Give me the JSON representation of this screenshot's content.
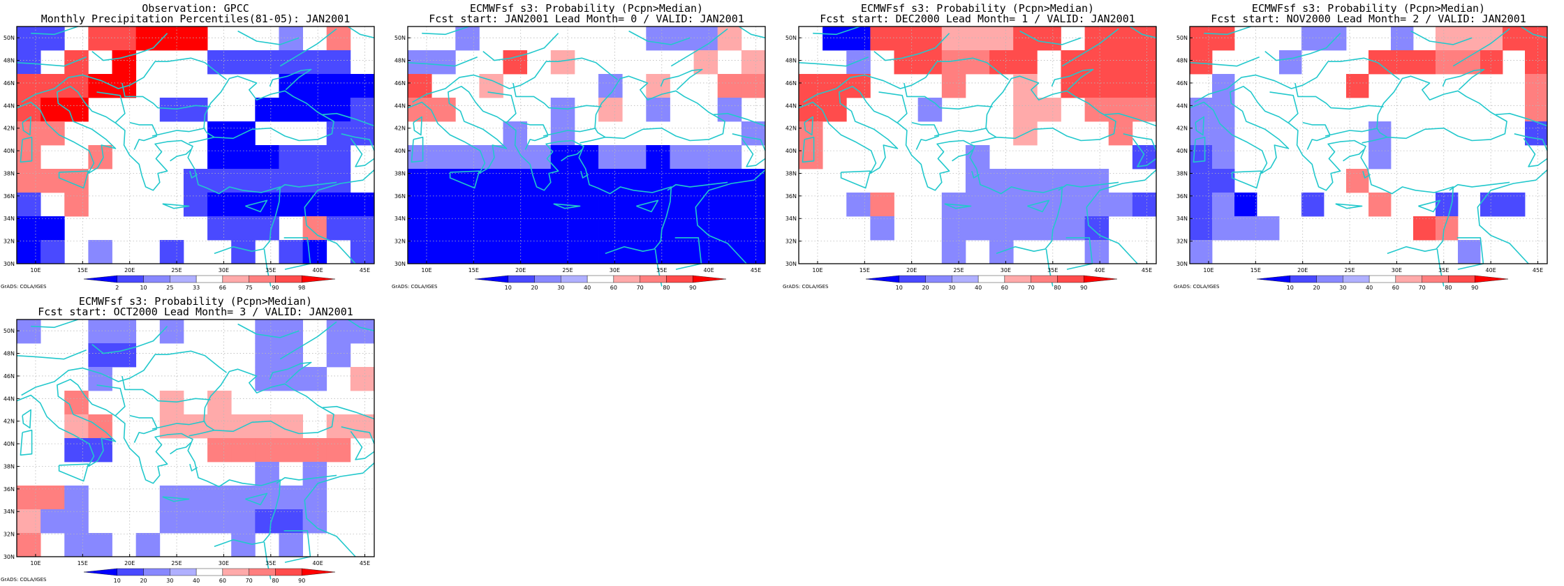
{
  "credit": "GrADS: COLA/IGES",
  "colors": {
    "coast": "#22c8cc",
    "grid": "#b8b8b8",
    "ramp": [
      "#0000ff",
      "#4a4aff",
      "#8888ff",
      "#b0b0ff",
      "#ffffff",
      "#ffaaaa",
      "#ff7f7f",
      "#ff4c4c",
      "#ff0000"
    ]
  },
  "lon_labels": [
    "10E",
    "15E",
    "20E",
    "25E",
    "30E",
    "35E",
    "40E",
    "45E"
  ],
  "lat_labels": [
    "50N",
    "48N",
    "46N",
    "44N",
    "42N",
    "40N",
    "38N",
    "36N",
    "34N",
    "32N",
    "30N"
  ],
  "panels": [
    {
      "title1": "Observation: GPCC",
      "title2": "Monthly Precipitation Percentiles(81-05): JAN2001",
      "colorbar_labels": [
        "2",
        "10",
        "25",
        "33",
        "66",
        "75",
        "90",
        "98"
      ],
      "rows": [
        "11.77888...2.6.",
        "1.7.8...111111.",
        "77788......0000",
        "788...11..00001",
        "66......00...11",
        "6..6....000111.",
        "666....1111111.",
        "1.6....10000000",
        "00......111.611",
        "01.2..1..1.10.1"
      ]
    },
    {
      "title1": "ECMWFsf s3: Probability (Pcpn>Median)",
      "title2": "Fcst start: JAN2001   Lead Month= 0 / VALID: JAN2001",
      "colorbar_labels": [
        "10",
        "20",
        "30",
        "40",
        "60",
        "70",
        "80",
        "90"
      ],
      "rows": [
        "..2.......2225.",
        "22..7.5.....5.5",
        "7..5....2.5..66",
        "66....2.5.2..2.",
        "....2.2.......2",
        "22222200220222.",
        "000000000000000",
        "000000000000000",
        "000000000000000",
        "000000000000000"
      ]
    },
    {
      "title1": "ECMWFsf s3: Probability (Pcpn>Median)",
      "title2": "Fcst start: DEC2000   Lead Month= 1 / VALID: JAN2001",
      "colorbar_labels": [
        "10",
        "20",
        "30",
        "40",
        "60",
        "70",
        "80",
        "90"
      ],
      "rows": [
        ".0077755577.777",
        "..2.776677.7777",
        "777...6..5.7777",
        "77...2...55.666",
        "6........5...6.",
        "6......2......1",
        ".......222222..",
        "..26..222222221",
        "...2..2222221..",
        "......2.2...2.."
      ]
    },
    {
      "title1": "ECMWFsf s3: Probability (Pcpn>Median)",
      "title2": "Fcst start: NOV2000   Lead Month= 2 / VALID: JAN2001",
      "colorbar_labels": [
        "10",
        "20",
        "30",
        "40",
        "60",
        "70",
        "80",
        "90"
      ],
      "rows": [
        "77...22..2.55577",
        "7...2...777667.7",
        ".2.....7.......6",
        "22.............6",
        "22......2......1",
        "12......2.......",
        "11.....6........",
        "120..1..6..1.11.",
        "1222......76....",
        "2...........2..."
      ]
    },
    {
      "title1": "ECMWFsf s3: Probability (Pcpn>Median)",
      "title2": "Fcst start: OCT2000   Lead Month= 3 / VALID: JAN2001",
      "colorbar_labels": [
        "10",
        "20",
        "30",
        "40",
        "60",
        "70",
        "80",
        "90"
      ],
      "rows": [
        "2..22.2...22.22",
        "...11.....22.2.",
        "...2......222.5",
        "..6...5.5......",
        "..56..555555.55",
        "..11....666666.",
        "..........2.2..",
        "662...2222222..",
        "522...2222112..",
        "6.22.2...2.2..."
      ]
    }
  ]
}
